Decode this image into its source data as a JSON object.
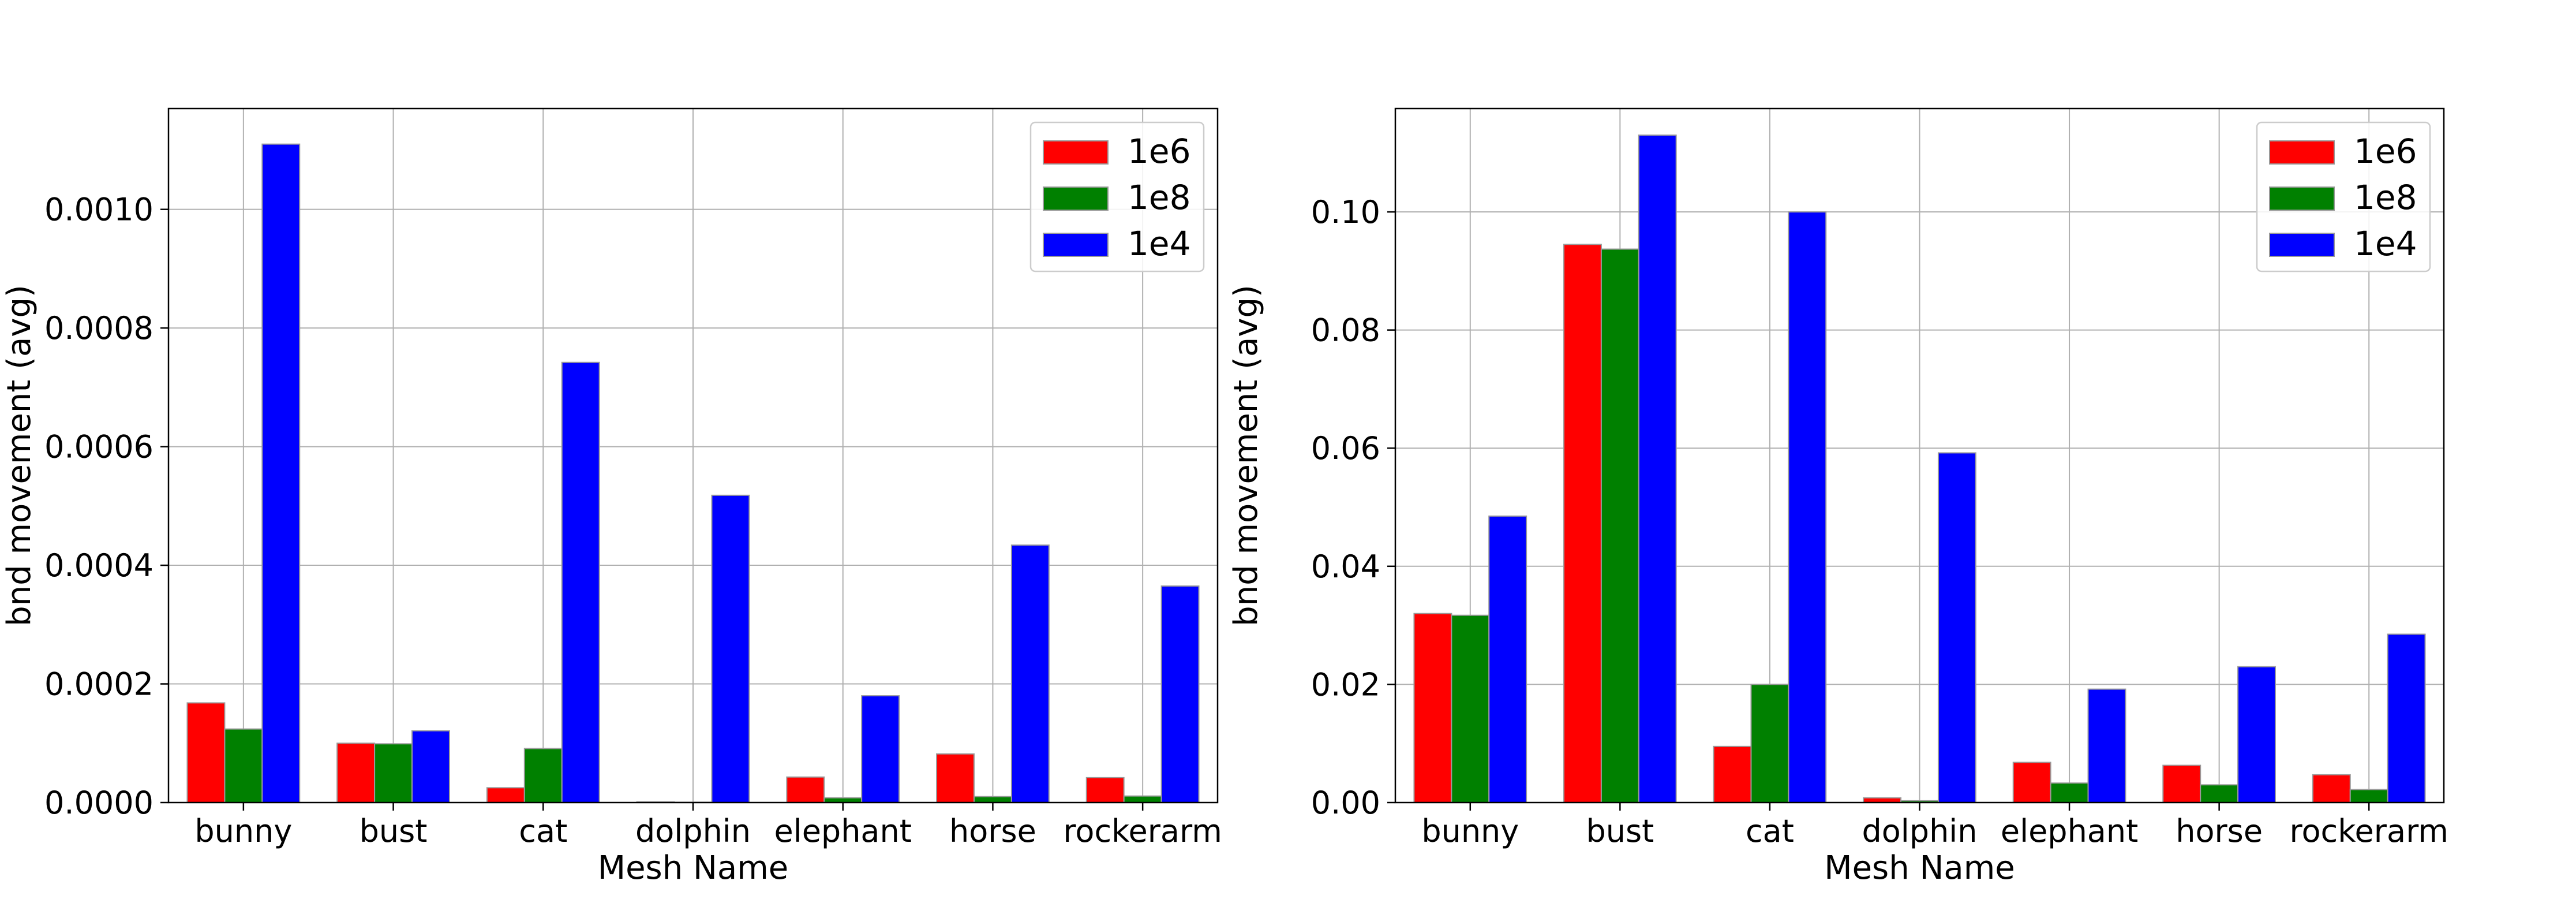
{
  "chart_data": [
    {
      "type": "bar",
      "title": "",
      "xlabel": "Mesh Name",
      "ylabel": "bnd movement (avg)",
      "categories": [
        "bunny",
        "bust",
        "cat",
        "dolphin",
        "elephant",
        "horse",
        "rockerarm"
      ],
      "ylim": [
        0,
        0.00117
      ],
      "yticks": [
        "0.0000",
        "0.0002",
        "0.0004",
        "0.0006",
        "0.0008",
        "0.0010"
      ],
      "ytick_values": [
        0,
        0.0002,
        0.0004,
        0.0006,
        0.0008,
        0.001
      ],
      "grid": true,
      "legend_position": "top-right",
      "series": [
        {
          "name": "1e6",
          "color": "#ff0000",
          "values": [
            0.000168,
            0.0001,
            2.5e-05,
            1e-06,
            4.3e-05,
            8.2e-05,
            4.2e-05
          ]
        },
        {
          "name": "1e8",
          "color": "#008000",
          "values": [
            0.000124,
            9.9e-05,
            9.1e-05,
            5e-07,
            8e-06,
            1e-05,
            1.1e-05
          ]
        },
        {
          "name": "1e4",
          "color": "#0000ff",
          "values": [
            0.00111,
            0.000121,
            0.000742,
            0.000518,
            0.00018,
            0.000434,
            0.000365
          ]
        }
      ]
    },
    {
      "type": "bar",
      "title": "",
      "xlabel": "Mesh Name",
      "ylabel": "bnd movement (avg)",
      "categories": [
        "bunny",
        "bust",
        "cat",
        "dolphin",
        "elephant",
        "horse",
        "rockerarm"
      ],
      "ylim": [
        0,
        0.1175
      ],
      "yticks": [
        "0.00",
        "0.02",
        "0.04",
        "0.06",
        "0.08",
        "0.10"
      ],
      "ytick_values": [
        0,
        0.02,
        0.04,
        0.06,
        0.08,
        0.1
      ],
      "grid": true,
      "legend_position": "top-right",
      "series": [
        {
          "name": "1e6",
          "color": "#ff0000",
          "values": [
            0.032,
            0.0945,
            0.0095,
            0.0008,
            0.0068,
            0.0063,
            0.0047
          ]
        },
        {
          "name": "1e8",
          "color": "#008000",
          "values": [
            0.0317,
            0.0937,
            0.02,
            0.0003,
            0.0033,
            0.003,
            0.0022
          ]
        },
        {
          "name": "1e4",
          "color": "#0000ff",
          "values": [
            0.0485,
            0.113,
            0.1,
            0.0592,
            0.0192,
            0.023,
            0.0285
          ]
        }
      ]
    }
  ]
}
